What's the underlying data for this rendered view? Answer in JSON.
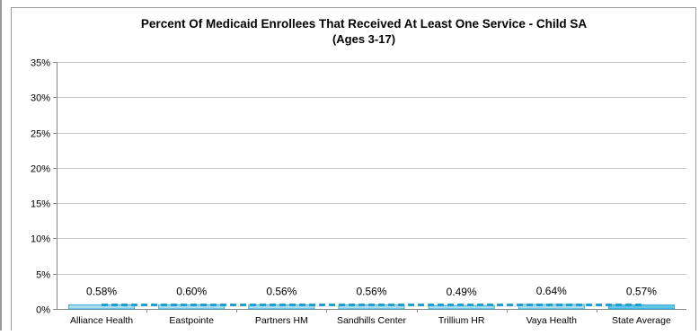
{
  "chart_data": {
    "type": "bar",
    "title": "Percent Of Medicaid Enrollees That Received At Least One Service - Child SA",
    "subtitle": "(Ages 3-17)",
    "categories": [
      "Alliance Health",
      "Eastpointe",
      "Partners HM",
      "Sandhills Center",
      "Trillium HR",
      "Vaya Health",
      "State Average"
    ],
    "values": [
      0.58,
      0.6,
      0.56,
      0.56,
      0.49,
      0.64,
      0.57
    ],
    "data_labels": [
      "0.58%",
      "0.60%",
      "0.56%",
      "0.56%",
      "0.49%",
      "0.64%",
      "0.57%"
    ],
    "reference_line": {
      "value": 0.57,
      "style": "dashed"
    },
    "yticks": [
      "0%",
      "5%",
      "10%",
      "15%",
      "20%",
      "25%",
      "30%",
      "35%"
    ],
    "ylim": [
      0,
      35
    ],
    "xlabel": "",
    "ylabel": "",
    "grid": true,
    "colors": {
      "bar_fill": "#a9dcef",
      "bar_stroke": "#1f9fcf",
      "highlight_fill": "#5fc6ea",
      "reference_line": "#1f9fcf",
      "grid": "#c8c8c8",
      "border": "#9a9a9a"
    }
  }
}
